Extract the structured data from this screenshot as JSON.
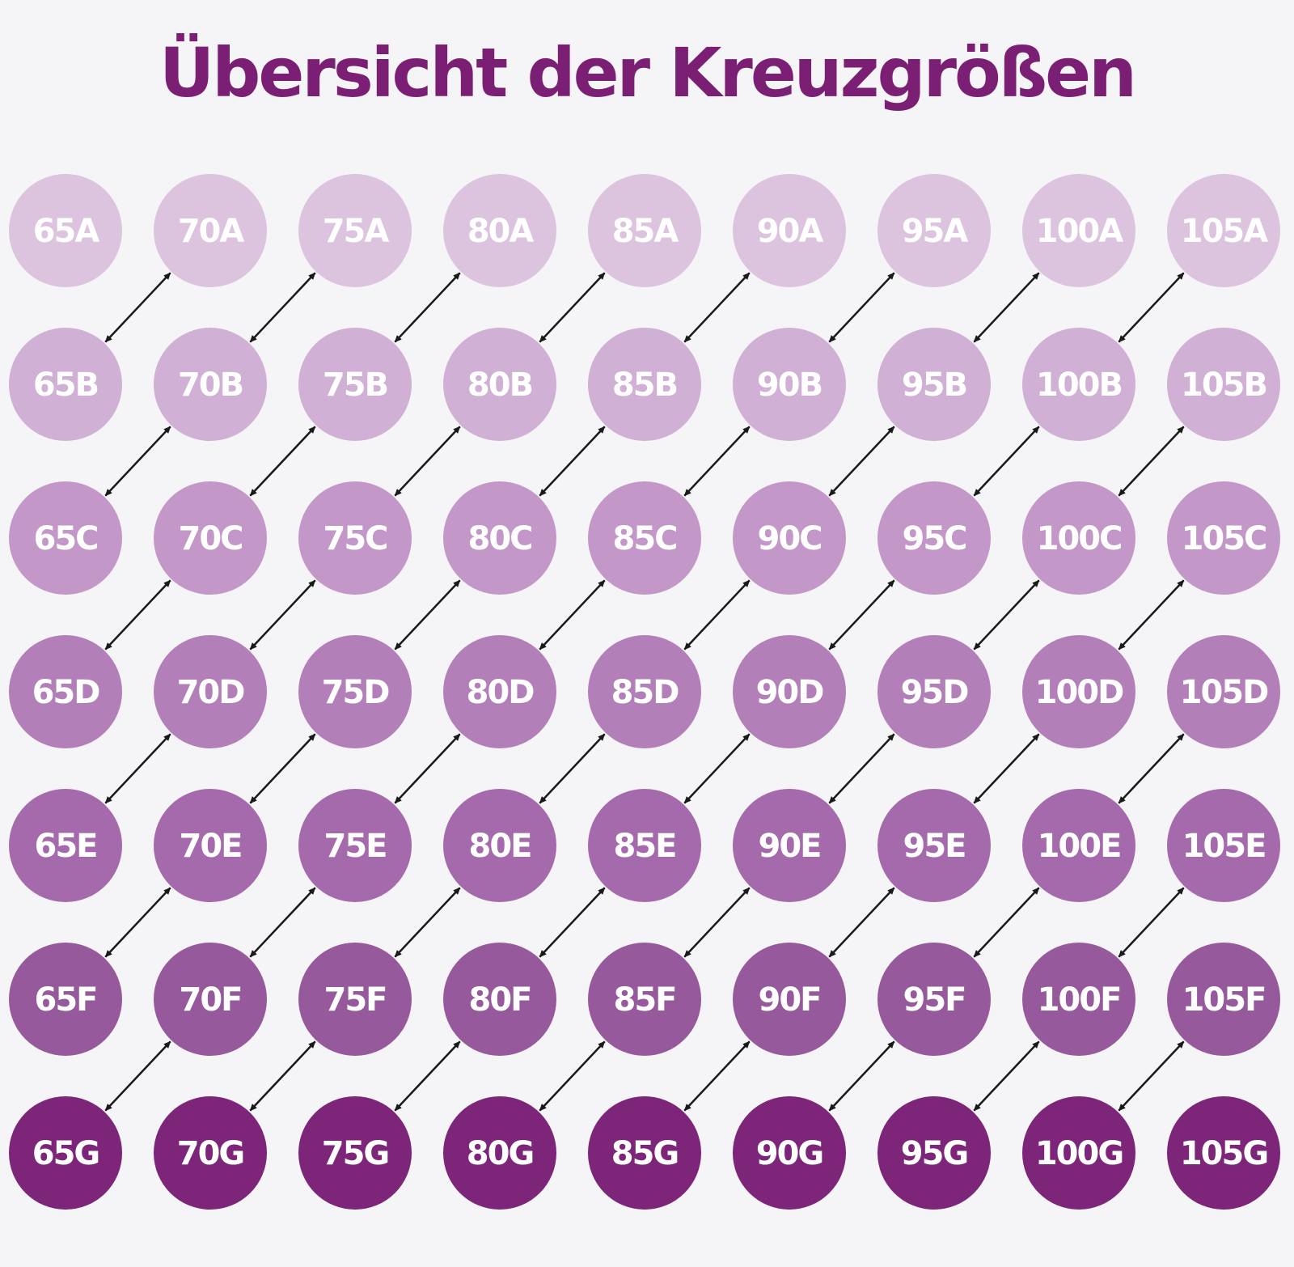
{
  "title": "Übersicht der Kreuzgrößen",
  "band_sizes": [
    "65",
    "70",
    "75",
    "80",
    "85",
    "90",
    "95",
    "100",
    "105"
  ],
  "cup_sizes": [
    "A",
    "B",
    "C",
    "D",
    "E",
    "F",
    "G"
  ],
  "sizes": [
    [
      "65A",
      "70A",
      "75A",
      "80A",
      "85A",
      "90A",
      "95A",
      "100A",
      "105A"
    ],
    [
      "65B",
      "70B",
      "75B",
      "80B",
      "85B",
      "90B",
      "95B",
      "100B",
      "105B"
    ],
    [
      "65C",
      "70C",
      "75C",
      "80C",
      "85C",
      "90C",
      "95C",
      "100C",
      "105C"
    ],
    [
      "65D",
      "70D",
      "75D",
      "80D",
      "85D",
      "90D",
      "95D",
      "100D",
      "105D"
    ],
    [
      "65E",
      "70E",
      "75E",
      "80E",
      "85E",
      "90E",
      "95E",
      "100E",
      "105E"
    ],
    [
      "65F",
      "70F",
      "75F",
      "80F",
      "85F",
      "90F",
      "95F",
      "100F",
      "105F"
    ],
    [
      "65G",
      "70G",
      "75G",
      "80G",
      "85G",
      "90G",
      "95G",
      "100G",
      "105G"
    ]
  ],
  "row_colors": [
    "#dcc3de",
    "#d0b0d4",
    "#c397c8",
    "#b37fb9",
    "#a56aab",
    "#965a9c",
    "#7d2579"
  ],
  "arrow_color": "#1a1a1a",
  "title_color": "#7a1f73"
}
